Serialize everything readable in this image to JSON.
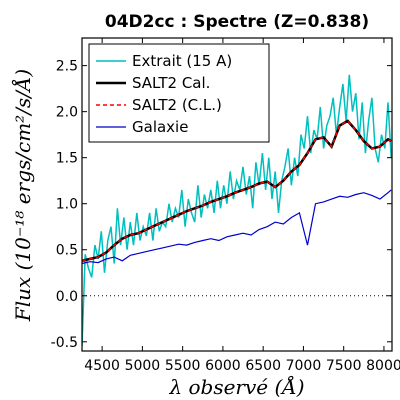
{
  "chart_data": {
    "type": "line",
    "title": "04D2cc : Spectre (Z=0.838)",
    "xlabel": "λ observé (Å)",
    "ylabel": "Flux (10⁻¹⁸ ergs/cm²/s/Å)",
    "xlim": [
      4250,
      8100
    ],
    "ylim": [
      -0.6,
      2.8
    ],
    "x_ticks": [
      4500,
      5000,
      5500,
      6000,
      6500,
      7000,
      7500,
      8000
    ],
    "x_tick_labels": [
      "4500",
      "5000",
      "5500",
      "6000",
      "6500",
      "7000",
      "7500",
      "8000"
    ],
    "y_ticks": [
      -0.5,
      0.0,
      0.5,
      1.0,
      1.5,
      2.0,
      2.5
    ],
    "y_tick_labels": [
      "-0.5",
      "0.0",
      "0.5",
      "1.0",
      "1.5",
      "2.0",
      "2.5"
    ],
    "grid": false,
    "legend_position": "top-left",
    "reference_line": {
      "y": 0.0,
      "style": "dotted"
    },
    "series": [
      {
        "name": "Extrait (15 A)",
        "color": "#00BFBF",
        "width": 1.5,
        "x": [
          4250,
          4290,
          4330,
          4370,
          4410,
          4450,
          4490,
          4530,
          4570,
          4610,
          4650,
          4690,
          4730,
          4770,
          4810,
          4850,
          4890,
          4930,
          4970,
          5010,
          5050,
          5090,
          5130,
          5170,
          5210,
          5250,
          5290,
          5330,
          5370,
          5410,
          5450,
          5490,
          5530,
          5570,
          5610,
          5650,
          5690,
          5730,
          5770,
          5810,
          5850,
          5890,
          5930,
          5970,
          6010,
          6050,
          6090,
          6130,
          6170,
          6210,
          6250,
          6290,
          6330,
          6370,
          6410,
          6450,
          6490,
          6530,
          6570,
          6610,
          6650,
          6690,
          6730,
          6770,
          6810,
          6850,
          6890,
          6930,
          6970,
          7010,
          7050,
          7090,
          7130,
          7170,
          7210,
          7250,
          7290,
          7330,
          7370,
          7410,
          7450,
          7490,
          7530,
          7570,
          7610,
          7650,
          7690,
          7730,
          7770,
          7810,
          7850,
          7890,
          7930,
          7970,
          8010,
          8050,
          8090
        ],
        "y": [
          -0.55,
          0.45,
          0.3,
          0.2,
          0.55,
          0.4,
          0.7,
          0.25,
          0.6,
          0.75,
          0.35,
          0.95,
          0.55,
          0.85,
          0.5,
          0.8,
          0.55,
          0.9,
          0.6,
          0.75,
          0.65,
          0.9,
          0.6,
          0.95,
          0.7,
          0.8,
          0.75,
          1.0,
          0.8,
          0.95,
          0.85,
          1.15,
          0.75,
          1.05,
          0.9,
          0.8,
          1.2,
          0.85,
          1.1,
          0.95,
          1.15,
          0.9,
          1.25,
          0.95,
          1.2,
          1.0,
          1.35,
          1.05,
          1.25,
          1.15,
          1.4,
          1.1,
          1.3,
          0.95,
          1.45,
          1.2,
          1.55,
          1.15,
          1.5,
          1.05,
          1.35,
          0.9,
          1.25,
          1.4,
          1.6,
          1.2,
          1.5,
          1.3,
          1.75,
          1.6,
          1.95,
          1.55,
          1.8,
          1.7,
          2.05,
          1.6,
          1.85,
          1.95,
          2.15,
          1.75,
          2.05,
          2.3,
          1.9,
          2.4,
          2.0,
          2.2,
          1.7,
          2.1,
          1.55,
          1.9,
          2.15,
          1.6,
          1.45,
          1.75,
          1.6,
          2.1,
          1.5
        ]
      },
      {
        "name": "SALT2 Cal.",
        "color": "#000000",
        "width": 2.5,
        "x": [
          4250,
          4350,
          4450,
          4550,
          4650,
          4750,
          4850,
          4950,
          5050,
          5150,
          5250,
          5350,
          5450,
          5550,
          5650,
          5750,
          5850,
          5950,
          6050,
          6150,
          6250,
          6350,
          6450,
          6550,
          6650,
          6750,
          6850,
          6950,
          7050,
          7150,
          7250,
          7350,
          7450,
          7550,
          7650,
          7750,
          7850,
          7950,
          8050,
          8090
        ],
        "y": [
          0.38,
          0.4,
          0.42,
          0.47,
          0.55,
          0.62,
          0.66,
          0.68,
          0.72,
          0.76,
          0.8,
          0.84,
          0.88,
          0.92,
          0.95,
          0.98,
          1.02,
          1.05,
          1.08,
          1.12,
          1.15,
          1.18,
          1.22,
          1.24,
          1.18,
          1.25,
          1.35,
          1.42,
          1.55,
          1.7,
          1.72,
          1.62,
          1.85,
          1.9,
          1.8,
          1.68,
          1.6,
          1.62,
          1.7,
          1.68
        ]
      },
      {
        "name": "SALT2 (C.L.)",
        "color": "#FF0000",
        "width": 1.5,
        "x": [
          4250,
          4350,
          4450,
          4550,
          4650,
          4750,
          4850,
          4950,
          5050,
          5150,
          5250,
          5350,
          5450,
          5550,
          5650,
          5750,
          5850,
          5950,
          6050,
          6150,
          6250,
          6350,
          6450,
          6550,
          6650,
          6750,
          6850,
          6950,
          7050,
          7150,
          7250,
          7350,
          7450,
          7550,
          7650,
          7750,
          7850,
          7950,
          8050,
          8090
        ],
        "y": [
          0.38,
          0.4,
          0.42,
          0.47,
          0.55,
          0.62,
          0.66,
          0.68,
          0.72,
          0.76,
          0.8,
          0.84,
          0.88,
          0.92,
          0.95,
          0.98,
          1.02,
          1.05,
          1.08,
          1.12,
          1.15,
          1.18,
          1.22,
          1.24,
          1.18,
          1.25,
          1.35,
          1.42,
          1.55,
          1.7,
          1.72,
          1.62,
          1.85,
          1.9,
          1.8,
          1.68,
          1.6,
          1.62,
          1.7,
          1.68
        ]
      },
      {
        "name": "Galaxie",
        "color": "#0000CC",
        "width": 1.2,
        "x": [
          4250,
          4350,
          4450,
          4550,
          4650,
          4750,
          4850,
          4950,
          5050,
          5150,
          5250,
          5350,
          5450,
          5550,
          5650,
          5750,
          5850,
          5950,
          6050,
          6150,
          6250,
          6350,
          6450,
          6550,
          6650,
          6750,
          6850,
          6950,
          7050,
          7150,
          7250,
          7350,
          7450,
          7550,
          7650,
          7750,
          7850,
          7950,
          8050,
          8090
        ],
        "y": [
          0.35,
          0.37,
          0.36,
          0.4,
          0.42,
          0.38,
          0.44,
          0.46,
          0.48,
          0.5,
          0.52,
          0.54,
          0.56,
          0.55,
          0.58,
          0.6,
          0.62,
          0.6,
          0.64,
          0.66,
          0.68,
          0.66,
          0.72,
          0.75,
          0.8,
          0.78,
          0.85,
          0.9,
          0.55,
          1.0,
          1.02,
          1.05,
          1.08,
          1.07,
          1.1,
          1.12,
          1.09,
          1.05,
          1.12,
          1.15
        ]
      }
    ]
  }
}
